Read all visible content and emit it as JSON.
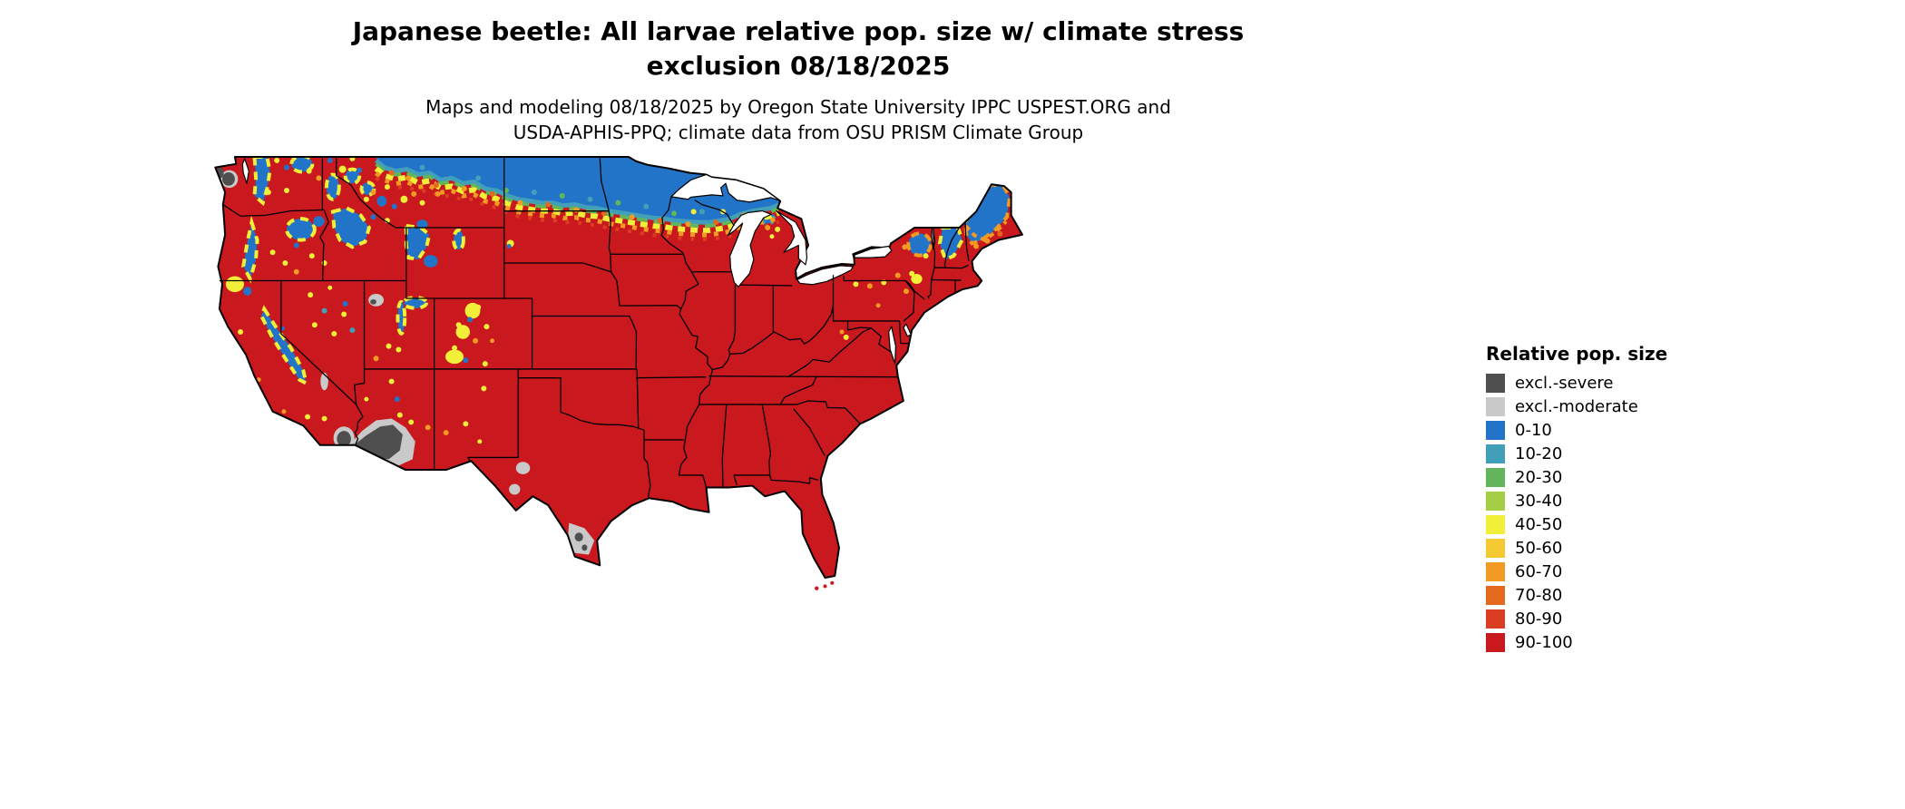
{
  "header": {
    "title_line1": "Japanese beetle: All larvae relative pop. size w/ climate stress",
    "title_line2": "exclusion 08/18/2025",
    "subtitle_line1": "Maps and modeling 08/18/2025 by Oregon State University IPPC USPEST.ORG and",
    "subtitle_line2": "USDA-APHIS-PPQ; climate data from OSU PRISM Climate Group"
  },
  "legend": {
    "title": "Relative pop. size",
    "items": [
      {
        "label": "excl.-severe",
        "color": "#4f4f4f"
      },
      {
        "label": "excl.-moderate",
        "color": "#c9c9c9"
      },
      {
        "label": "0-10",
        "color": "#2274c8"
      },
      {
        "label": "10-20",
        "color": "#419fba"
      },
      {
        "label": "20-30",
        "color": "#62b55a"
      },
      {
        "label": "30-40",
        "color": "#a6ce45"
      },
      {
        "label": "40-50",
        "color": "#f2ef38"
      },
      {
        "label": "50-60",
        "color": "#f5c932"
      },
      {
        "label": "60-70",
        "color": "#f19b23"
      },
      {
        "label": "70-80",
        "color": "#e4691d"
      },
      {
        "label": "80-90",
        "color": "#d93c20"
      },
      {
        "label": "90-100",
        "color": "#c9191f"
      }
    ]
  },
  "map": {
    "water_color": "#ffffff",
    "border_color": "#000000"
  }
}
